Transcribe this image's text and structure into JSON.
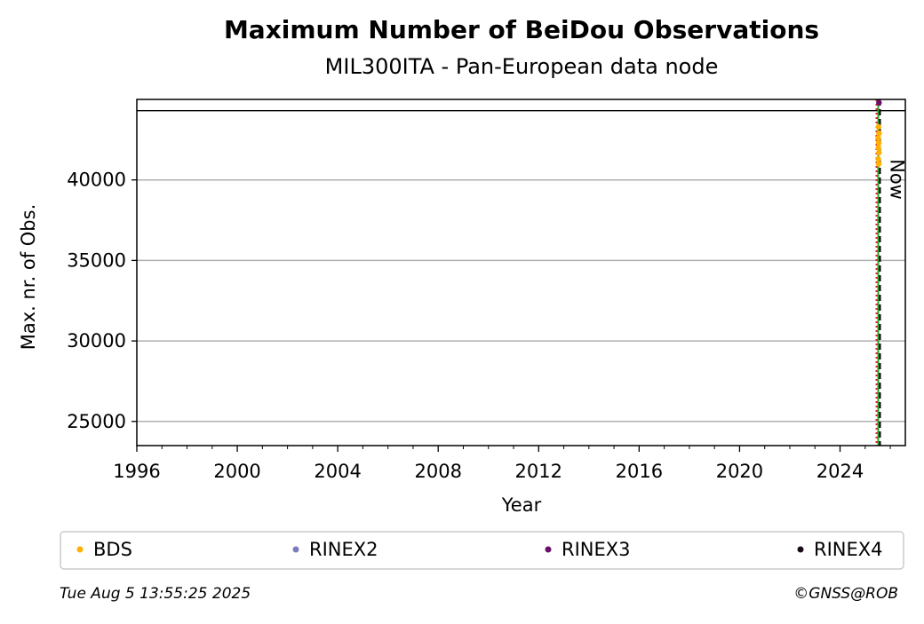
{
  "chart_data": {
    "type": "scatter",
    "title": "Maximum Number of BeiDou Observations",
    "subtitle": "MIL300ITA - Pan-European data node",
    "xlabel": "Year",
    "ylabel": "Max. nr. of Obs.",
    "xlim": [
      1996,
      2026.6
    ],
    "ylim": [
      23500,
      45000
    ],
    "xticks": [
      "1996",
      "2000",
      "2004",
      "2008",
      "2012",
      "2016",
      "2020",
      "2024"
    ],
    "yticks": [
      "25000",
      "30000",
      "35000",
      "40000"
    ],
    "grid": "y",
    "hlines": [
      44300
    ],
    "vlines": [
      {
        "x": 2025.45,
        "color": "#d62728",
        "style": "dotted"
      },
      {
        "x": 2025.52,
        "color": "#2ca02c",
        "style": "solid"
      },
      {
        "x": 2025.59,
        "color": "#000000",
        "style": "dashed",
        "label": "Now"
      }
    ],
    "series": [
      {
        "name": "BDS",
        "color": "#ffb000",
        "points": [
          [
            2025.53,
            43300
          ],
          [
            2025.55,
            42900
          ],
          [
            2025.52,
            42600
          ],
          [
            2025.54,
            42300
          ],
          [
            2025.53,
            42000
          ],
          [
            2025.55,
            41700
          ],
          [
            2025.52,
            41300
          ],
          [
            2025.54,
            41000
          ]
        ]
      },
      {
        "name": "RINEX2",
        "color": "#7b7cc0",
        "points": []
      },
      {
        "name": "RINEX3",
        "color": "#6a0f6a",
        "points": [
          [
            2025.55,
            44800
          ]
        ]
      },
      {
        "name": "RINEX4",
        "color": "#1a0a1a",
        "points": []
      }
    ],
    "legend_position": "bottom"
  },
  "footer": {
    "timestamp": "Tue Aug  5 13:55:25 2025",
    "credit": "©GNSS@ROB"
  }
}
